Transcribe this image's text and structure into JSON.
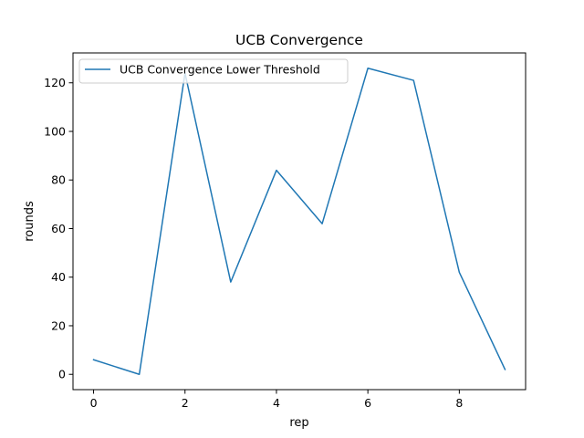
{
  "chart_data": {
    "type": "line",
    "title": "UCB Convergence",
    "xlabel": "rep",
    "ylabel": "rounds",
    "xlim": [
      -0.45,
      9.45
    ],
    "ylim": [
      -6.3,
      132.3
    ],
    "xticks": [
      0,
      2,
      4,
      6,
      8
    ],
    "yticks": [
      0,
      20,
      40,
      60,
      80,
      100,
      120
    ],
    "grid": false,
    "legend_position": "top-left",
    "series": [
      {
        "name": "UCB Convergence Lower Threshold",
        "color": "#1f77b4",
        "x": [
          0,
          1,
          2,
          3,
          4,
          5,
          6,
          7,
          8,
          9
        ],
        "y": [
          6,
          0,
          124,
          38,
          84,
          62,
          126,
          121,
          42,
          2
        ]
      }
    ]
  }
}
